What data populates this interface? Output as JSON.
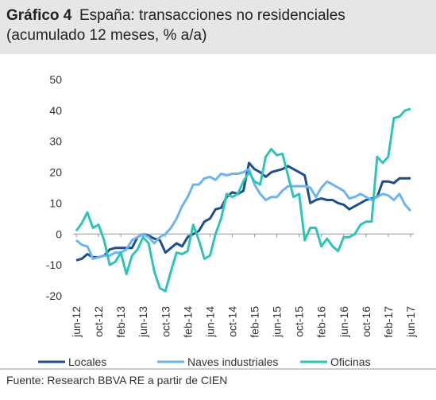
{
  "chart_data": {
    "type": "line",
    "title_label": "Gráfico 4",
    "title": "España: transacciones no residenciales",
    "subtitle": "(acumulado 12 meses, % a/a)",
    "source": "Fuente: Research BBVA RE a partir de CIEN",
    "categories": [
      "jun-12",
      null,
      null,
      null,
      "oct-12",
      null,
      null,
      null,
      "feb-13",
      null,
      null,
      null,
      "jun-13",
      null,
      null,
      null,
      "oct-13",
      null,
      null,
      null,
      "feb-14",
      null,
      null,
      null,
      "jun-14",
      null,
      null,
      null,
      "oct-14",
      null,
      null,
      null,
      "feb-15",
      null,
      null,
      null,
      "jun-15",
      null,
      null,
      null,
      "oct-15",
      null,
      null,
      null,
      "feb-16",
      null,
      null,
      null,
      "jun-16",
      null,
      null,
      null,
      "oct-16",
      null,
      null,
      null,
      "feb-17",
      null,
      null,
      null,
      "jun-17"
    ],
    "ylim": [
      -20,
      50
    ],
    "yticks": [
      -20,
      -10,
      0,
      10,
      20,
      30,
      40,
      50
    ],
    "series": [
      {
        "name": "Locales",
        "color": "#1f4e8c",
        "values": [
          -8.5,
          -8,
          -6.5,
          -7.5,
          -7.5,
          -7,
          -5,
          -4.5,
          -4.5,
          -4.5,
          -4.5,
          -1,
          0,
          -0.5,
          -1.5,
          -2,
          -6,
          -4.5,
          -3,
          -4,
          -1,
          0,
          1,
          4,
          5,
          8,
          8.5,
          12,
          13.5,
          13,
          14,
          23,
          21,
          20,
          18.5,
          20,
          20.5,
          21,
          22,
          21,
          20,
          19,
          10,
          11,
          11.5,
          11,
          11,
          10,
          9.5,
          8,
          9,
          10,
          11,
          11.5,
          12,
          17,
          17,
          16.5,
          18,
          18,
          18
        ]
      },
      {
        "name": "Naves industriales",
        "color": "#6cb4ee",
        "values": [
          -2,
          -3.5,
          -4,
          -8,
          -7.5,
          -7,
          -7,
          -6,
          -6,
          -5,
          -2,
          -1,
          0,
          -1,
          -3,
          -1,
          0,
          2,
          5,
          9,
          12,
          16,
          16,
          18,
          18.5,
          17.5,
          19.5,
          19,
          19.5,
          19.5,
          20,
          21,
          16,
          13,
          11,
          12,
          12,
          14,
          15.5,
          15.5,
          15.5,
          15.5,
          15,
          12,
          15,
          17,
          16,
          15,
          14,
          11.5,
          12,
          13,
          12,
          11,
          12,
          13,
          12.5,
          11,
          13,
          9.5,
          7.5
        ]
      },
      {
        "name": "Oficinas",
        "color": "#2ec4b6",
        "values": [
          1,
          3.5,
          7,
          2,
          3,
          -2,
          -10,
          -9,
          -6,
          -13,
          -7,
          -5,
          -1,
          -3,
          -12,
          -17.5,
          -18.5,
          -12,
          -6,
          -6.5,
          -5.5,
          3,
          -2,
          -8,
          -7,
          0,
          5,
          13,
          12,
          13,
          17,
          20,
          17,
          16,
          25,
          27.5,
          25.5,
          26,
          19,
          12,
          13,
          -2,
          2,
          2,
          -4,
          -1.5,
          -4,
          -5.5,
          -1,
          -1,
          0,
          3,
          4,
          4,
          25,
          23,
          25,
          37.5,
          38,
          40,
          40.5
        ]
      }
    ]
  }
}
